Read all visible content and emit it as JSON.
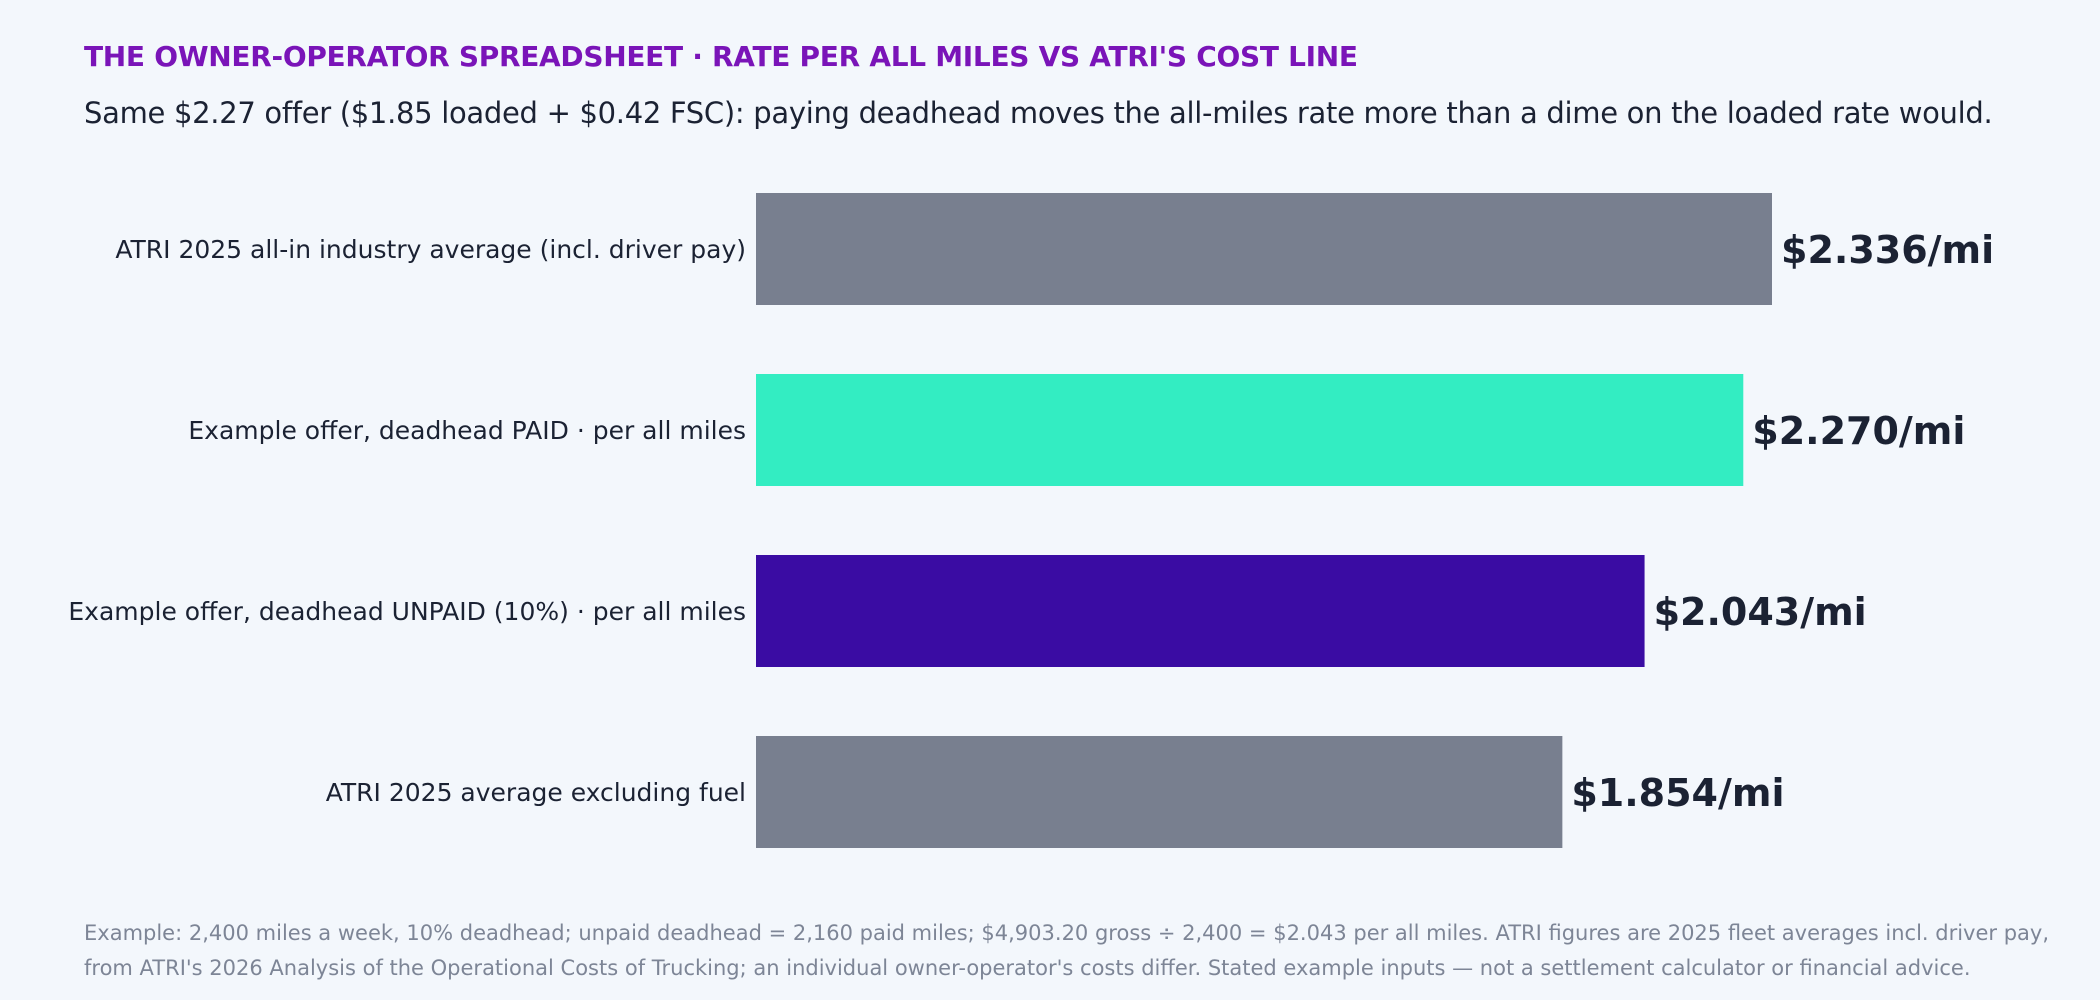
{
  "header": {
    "eyebrow": "THE OWNER-OPERATOR SPREADSHEET · RATE PER ALL MILES VS ATRI'S COST LINE",
    "headline": "Same $2.27 offer ($1.85 loaded + $0.42 FSC): paying deadhead moves the all-miles rate more than a dime on the loaded rate would."
  },
  "chart_data": {
    "type": "bar",
    "orientation": "horizontal",
    "categories": [
      "ATRI 2025 all-in industry average (incl. driver pay)",
      "Example offer, deadhead PAID · per all miles",
      "Example offer, deadhead UNPAID (10%) · per all miles",
      "ATRI 2025 average excluding fuel"
    ],
    "values": [
      2.336,
      2.27,
      2.043,
      1.854
    ],
    "value_labels": [
      "$2.336/mi",
      "$2.270/mi",
      "$2.043/mi",
      "$1.854/mi"
    ],
    "colors": [
      "#787f8f",
      "#33edc2",
      "#3a0ca3",
      "#787f8f"
    ],
    "xlim": [
      0,
      2.336
    ],
    "grid": false,
    "title": "",
    "xlabel": "",
    "ylabel": ""
  },
  "footnote": {
    "line1": "Example: 2,400 miles a week, 10% deadhead; unpaid deadhead = 2,160 paid miles; $4,903.20 gross ÷ 2,400 = $2.043 per all miles. ATRI figures are 2025 fleet averages incl. driver pay,",
    "line2": "from ATRI's 2026 Analysis of the Operational Costs of Trucking; an individual owner-operator's costs differ. Stated example inputs — not a settlement calculator or financial advice."
  }
}
